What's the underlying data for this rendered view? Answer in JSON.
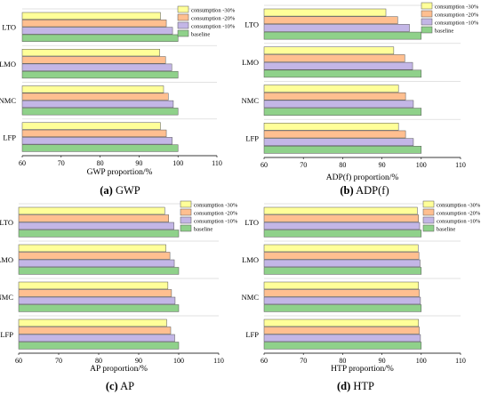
{
  "colors": {
    "baseline": "#8fd18a",
    "consumption -10%": "#c3b6e6",
    "consumption -20%": "#ffbf90",
    "consumption -30%": "#ffff99",
    "outline": "#555555"
  },
  "captions": [
    {
      "letter": "(a)",
      "text": "GWP"
    },
    {
      "letter": "(b)",
      "text": "ADP(f)"
    },
    {
      "letter": "(c)",
      "text": "AP"
    },
    {
      "letter": "(d)",
      "text": "HTP"
    }
  ],
  "chart_data": [
    {
      "type": "bar",
      "orientation": "horizontal",
      "xlabel": "GWP proportion/%",
      "xlim": [
        60,
        110
      ],
      "xticks": [
        60,
        70,
        80,
        90,
        100,
        110
      ],
      "categories": [
        "LFP",
        "NMC",
        "LMO",
        "LTO"
      ],
      "legend": "top-right",
      "grid": true,
      "series": [
        {
          "name": "consumption -30%",
          "values": [
            95.5,
            96.3,
            95.3,
            95.5
          ]
        },
        {
          "name": "consumption -20%",
          "values": [
            97.0,
            97.5,
            96.8,
            97.0
          ]
        },
        {
          "name": "consumption -10%",
          "values": [
            98.5,
            98.8,
            98.4,
            98.6
          ]
        },
        {
          "name": "baseline",
          "values": [
            100,
            100,
            100,
            100
          ]
        }
      ]
    },
    {
      "type": "bar",
      "orientation": "horizontal",
      "xlabel": "ADP(f) proportion/%",
      "xlim": [
        60,
        110
      ],
      "xticks": [
        60,
        70,
        80,
        90,
        100,
        110
      ],
      "categories": [
        "LFP",
        "NMC",
        "LMO",
        "LTO"
      ],
      "legend": "top-right",
      "grid": true,
      "series": [
        {
          "name": "consumption -30%",
          "values": [
            94.2,
            94.2,
            93.0,
            91.0
          ]
        },
        {
          "name": "consumption -20%",
          "values": [
            96.0,
            96.0,
            95.8,
            94.0
          ]
        },
        {
          "name": "consumption -10%",
          "values": [
            98.0,
            98.0,
            97.8,
            97.0
          ]
        },
        {
          "name": "baseline",
          "values": [
            100,
            100,
            100,
            100
          ]
        }
      ]
    },
    {
      "type": "bar",
      "orientation": "horizontal",
      "xlabel": "AP proportion/%",
      "xlim": [
        60,
        110
      ],
      "xticks": [
        60,
        70,
        80,
        90,
        100,
        110
      ],
      "categories": [
        "LFP",
        "NMC",
        "LMO",
        "LTO"
      ],
      "legend": "top-right",
      "grid": true,
      "series": [
        {
          "name": "consumption -30%",
          "values": [
            97.0,
            97.3,
            96.8,
            96.5
          ]
        },
        {
          "name": "consumption -20%",
          "values": [
            98.0,
            98.2,
            97.8,
            97.5
          ]
        },
        {
          "name": "consumption -10%",
          "values": [
            99.0,
            99.1,
            98.9,
            98.8
          ]
        },
        {
          "name": "baseline",
          "values": [
            100,
            100,
            100,
            100
          ]
        }
      ]
    },
    {
      "type": "bar",
      "orientation": "horizontal",
      "xlabel": "HTP proportion/%",
      "xlim": [
        60,
        110
      ],
      "xticks": [
        60,
        70,
        80,
        90,
        100,
        110
      ],
      "categories": [
        "LFP",
        "NMC",
        "LMO",
        "LTO"
      ],
      "legend": "top-right",
      "grid": true,
      "series": [
        {
          "name": "consumption -30%",
          "values": [
            99.3,
            99.3,
            99.2,
            99.0
          ]
        },
        {
          "name": "consumption -20%",
          "values": [
            99.5,
            99.5,
            99.4,
            99.3
          ]
        },
        {
          "name": "consumption -10%",
          "values": [
            99.8,
            99.8,
            99.7,
            99.6
          ]
        },
        {
          "name": "baseline",
          "values": [
            100,
            100,
            100,
            100
          ]
        }
      ]
    }
  ]
}
